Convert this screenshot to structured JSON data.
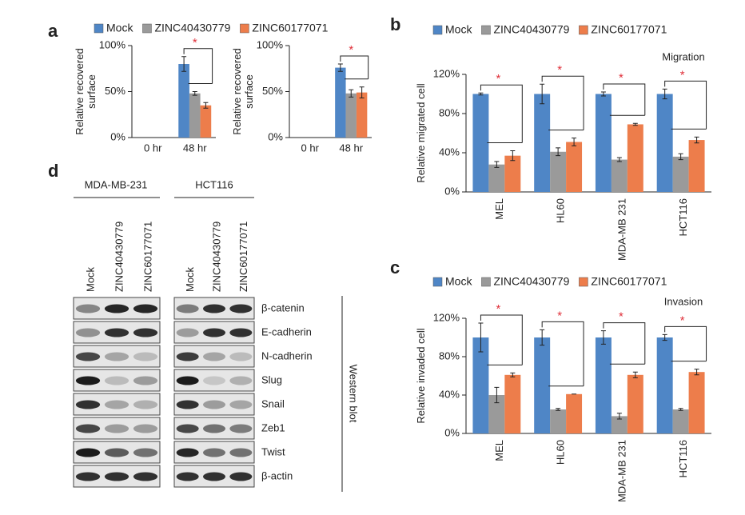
{
  "panel_labels": [
    "a",
    "b",
    "c",
    "d"
  ],
  "chart_data": [
    {
      "type": "bar",
      "y_label": [
        "Relative recovered",
        "surface"
      ],
      "categories": [
        "0 hr",
        "48 hr"
      ],
      "series": [
        {
          "name": "Mock",
          "color": "#4f86c6",
          "values": [
            null,
            80
          ],
          "errors": [
            null,
            8
          ]
        },
        {
          "name": "ZINC40430779",
          "color": "#9a9a9a",
          "values": [
            null,
            48
          ],
          "errors": [
            null,
            2
          ]
        },
        {
          "name": "ZINC60177071",
          "color": "#ed7d4b",
          "values": [
            null,
            35
          ],
          "errors": [
            null,
            3
          ]
        }
      ],
      "ylim": [
        0,
        100
      ],
      "yticks": [
        {
          "value": 0,
          "label": "0%"
        },
        {
          "value": 50,
          "label": "50%"
        },
        {
          "value": 100,
          "label": "100%"
        }
      ],
      "significance": [
        null,
        "*"
      ],
      "legend": true
    },
    {
      "type": "bar",
      "y_label": [
        "Relative recovered",
        "surface"
      ],
      "categories": [
        "0 hr",
        "48 hr"
      ],
      "series": [
        {
          "color": "#4f86c6",
          "values": [
            null,
            76
          ],
          "errors": [
            null,
            4
          ]
        },
        {
          "color": "#9a9a9a",
          "values": [
            null,
            48
          ],
          "errors": [
            null,
            4
          ]
        },
        {
          "color": "#ed7d4b",
          "values": [
            null,
            49
          ],
          "errors": [
            null,
            6
          ]
        }
      ],
      "ylim": [
        0,
        100
      ],
      "yticks": [
        {
          "value": 0,
          "label": "0%"
        },
        {
          "value": 50,
          "label": "50%"
        },
        {
          "value": 100,
          "label": "100%"
        }
      ],
      "significance": [
        null,
        "*"
      ],
      "legend": false
    },
    {
      "type": "bar",
      "title": "Migration",
      "y_label": [
        "Relative migrated cell"
      ],
      "categories": [
        "MEL",
        "HL60",
        "MDA-MB 231",
        "HCT116"
      ],
      "series": [
        {
          "name": "Mock",
          "color": "#4f86c6",
          "values": [
            100,
            100,
            100,
            100
          ],
          "errors": [
            1,
            10,
            2,
            5
          ]
        },
        {
          "name": "ZINC40430779",
          "color": "#9a9a9a",
          "values": [
            28,
            41,
            33,
            36
          ],
          "errors": [
            3,
            4,
            2,
            3
          ]
        },
        {
          "name": "ZINC60177071",
          "color": "#ed7d4b",
          "values": [
            37,
            51,
            69,
            53
          ],
          "errors": [
            5,
            4,
            1,
            3
          ]
        }
      ],
      "ylim": [
        0,
        120
      ],
      "yticks": [
        {
          "value": 0,
          "label": "0%"
        },
        {
          "value": 40,
          "label": "40%"
        },
        {
          "value": 80,
          "label": "80%"
        },
        {
          "value": 120,
          "label": "120%"
        }
      ],
      "significance": [
        "*",
        "*",
        "*",
        "*"
      ],
      "legend": true
    },
    {
      "type": "bar",
      "title": "Invasion",
      "y_label": [
        "Relative invaded cell"
      ],
      "categories": [
        "MEL",
        "HL60",
        "MDA-MB 231",
        "HCT116"
      ],
      "series": [
        {
          "name": "Mock",
          "color": "#4f86c6",
          "values": [
            100,
            100,
            100,
            100
          ],
          "errors": [
            15,
            8,
            7,
            3
          ]
        },
        {
          "name": "ZINC40430779",
          "color": "#9a9a9a",
          "values": [
            40,
            25,
            18,
            25
          ],
          "errors": [
            8,
            1,
            3,
            1
          ]
        },
        {
          "name": "ZINC60177071",
          "color": "#ed7d4b",
          "values": [
            61,
            41,
            61,
            64
          ],
          "errors": [
            2,
            0,
            3,
            3
          ]
        }
      ],
      "ylim": [
        0,
        120
      ],
      "yticks": [
        {
          "value": 0,
          "label": "0%"
        },
        {
          "value": 40,
          "label": "40%"
        },
        {
          "value": 80,
          "label": "80%"
        },
        {
          "value": 120,
          "label": "120%"
        }
      ],
      "significance": [
        "*",
        "*",
        "*",
        "*"
      ],
      "legend": true
    }
  ],
  "blot": {
    "cell_lines": [
      "MDA-MB-231",
      "HCT116"
    ],
    "lanes": [
      "Mock",
      "ZINC40430779",
      "ZINC60177071"
    ],
    "proteins": [
      "β-catenin",
      "E-cadherin",
      "N-cadherin",
      "Slug",
      "Snail",
      "Zeb1",
      "Twist",
      "β-actin"
    ],
    "method": "Western blot"
  }
}
